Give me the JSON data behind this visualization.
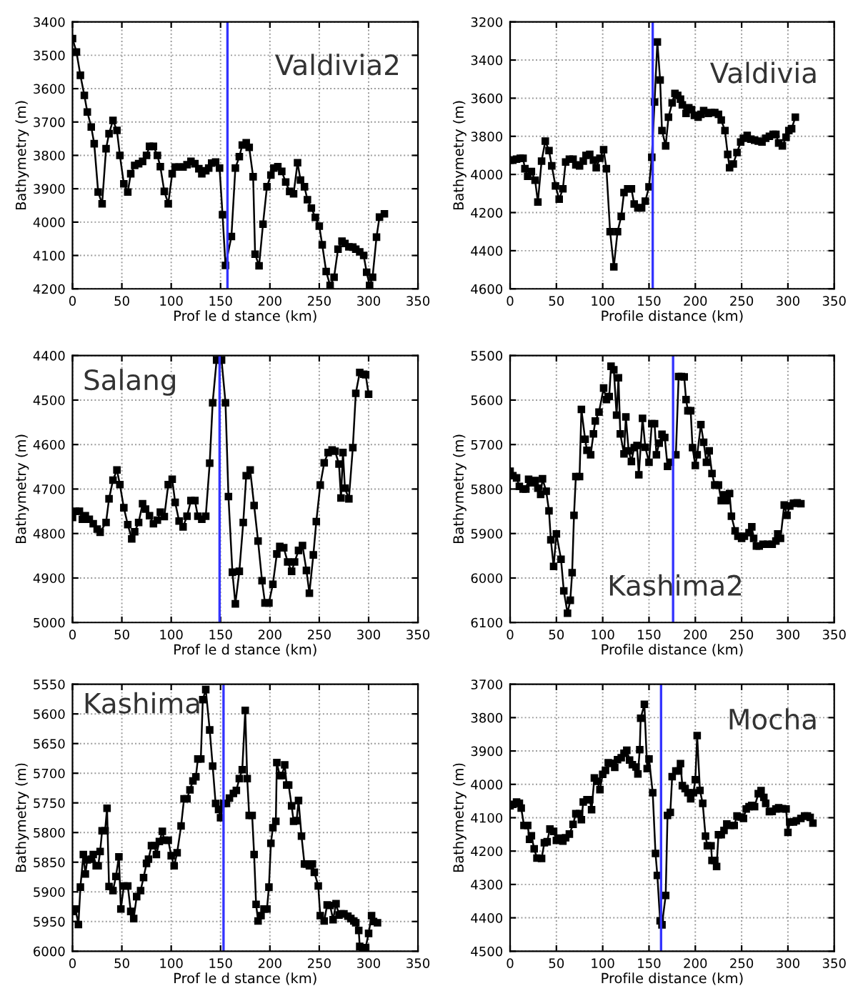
{
  "chart_data": [
    {
      "type": "line",
      "xlabel": "Prof le d stance (km)",
      "ylabel": "Bathymetry (m)",
      "annotations": [
        "Valdivia2"
      ],
      "marker": "square",
      "line_style": "solid",
      "grid": true,
      "xlim": [
        0,
        350
      ],
      "ylim": [
        4200,
        3400
      ],
      "xticks": [
        0,
        50,
        100,
        150,
        200,
        250,
        300,
        350
      ],
      "yticks": [
        3400,
        3500,
        3600,
        3700,
        3800,
        3900,
        4000,
        4100,
        4200
      ],
      "x": [
        0,
        4,
        8,
        12,
        15,
        19,
        22,
        26,
        30,
        34,
        37,
        41,
        45,
        48,
        52,
        56,
        59,
        63,
        67,
        71,
        75,
        78,
        82,
        86,
        89,
        93,
        97,
        101,
        104,
        108,
        112,
        116,
        120,
        124,
        128,
        131,
        135,
        138,
        141,
        145,
        149,
        152,
        155,
        161,
        165,
        169,
        172,
        176,
        179,
        183,
        185,
        189,
        193,
        197,
        201,
        204,
        208,
        212,
        216,
        220,
        224,
        228,
        231,
        235,
        238,
        242,
        246,
        250,
        253,
        257,
        261,
        265,
        269,
        273,
        276,
        280,
        284,
        287,
        291,
        295,
        298,
        301,
        304,
        308,
        311,
        316
      ],
      "series": [
        {
          "color": "#000000",
          "values": [
            3450,
            3490,
            3560,
            3620,
            3670,
            3715,
            3765,
            3910,
            3945,
            3780,
            3735,
            3695,
            3725,
            3800,
            3885,
            3910,
            3855,
            3830,
            3825,
            3818,
            3800,
            3773,
            3773,
            3800,
            3834,
            3908,
            3945,
            3855,
            3835,
            3835,
            3835,
            3828,
            3818,
            3825,
            3840,
            3855,
            3846,
            3838,
            3823,
            3820,
            3838,
            3978,
            4130,
            4043,
            3838,
            3804,
            3769,
            3762,
            3776,
            3864,
            4096,
            4131,
            4006,
            3894,
            3859,
            3838,
            3834,
            3848,
            3880,
            3908,
            3915,
            3822,
            3874,
            3894,
            3933,
            3958,
            3986,
            4012,
            4068,
            4148,
            4190,
            4165,
            4081,
            4057,
            4064,
            4074,
            4075,
            4081,
            4089,
            4100,
            4150,
            4190,
            4165,
            4045,
            3985,
            3975
          ]
        }
      ],
      "ref_lines": [
        {
          "axis": "x",
          "value": 157,
          "color": "#3333ff"
        }
      ]
    },
    {
      "type": "line",
      "xlabel": "Profile distance (km)",
      "ylabel": "Bathymetry (m)",
      "annotations": [
        "Valdivia"
      ],
      "marker": "square",
      "line_style": "solid",
      "grid": true,
      "xlim": [
        0,
        350
      ],
      "ylim": [
        4600,
        3200
      ],
      "xticks": [
        0,
        50,
        100,
        150,
        200,
        250,
        300,
        350
      ],
      "yticks": [
        3200,
        3400,
        3600,
        3800,
        4000,
        4200,
        4400,
        4600
      ],
      "x": [
        0,
        3,
        7,
        11,
        14,
        16,
        19,
        23,
        27,
        30,
        34,
        38,
        42,
        45,
        49,
        53,
        57,
        60,
        64,
        68,
        71,
        75,
        79,
        82,
        86,
        90,
        93,
        97,
        101,
        104,
        108,
        112,
        116,
        120,
        123,
        127,
        131,
        134,
        138,
        142,
        146,
        150,
        153,
        156,
        159,
        162,
        164,
        168,
        171,
        175,
        178,
        181,
        184,
        186,
        190,
        193,
        196,
        199,
        203,
        206,
        209,
        214,
        217,
        221,
        225,
        228,
        232,
        235,
        237,
        241,
        245,
        249,
        252,
        256,
        260,
        264,
        268,
        272,
        276,
        280,
        284,
        287,
        290,
        294,
        298,
        301,
        304,
        308
      ],
      "series": [
        {
          "color": "#000000",
          "values": [
            3925,
            3925,
            3920,
            3915,
            3915,
            3970,
            4010,
            3985,
            4030,
            4145,
            3930,
            3825,
            3875,
            3955,
            4060,
            4130,
            4075,
            3935,
            3920,
            3920,
            3950,
            3955,
            3930,
            3900,
            3895,
            3925,
            3965,
            3915,
            3870,
            3970,
            4300,
            4485,
            4300,
            4220,
            4095,
            4075,
            4075,
            4155,
            4175,
            4175,
            4140,
            4065,
            3910,
            3620,
            3305,
            3505,
            3770,
            3850,
            3700,
            3625,
            3575,
            3585,
            3605,
            3635,
            3680,
            3650,
            3660,
            3690,
            3700,
            3685,
            3665,
            3680,
            3675,
            3675,
            3685,
            3715,
            3770,
            3895,
            3965,
            3945,
            3885,
            3830,
            3810,
            3795,
            3815,
            3820,
            3825,
            3830,
            3810,
            3800,
            3790,
            3790,
            3835,
            3850,
            3805,
            3770,
            3760,
            3700
          ]
        }
      ],
      "ref_lines": [
        {
          "axis": "x",
          "value": 154,
          "color": "#3333ff"
        }
      ]
    },
    {
      "type": "line",
      "xlabel": "Prof le d stance (km)",
      "ylabel": "Bathymetry (m)",
      "annotations": [
        "Salang"
      ],
      "marker": "square",
      "line_style": "solid",
      "grid": true,
      "xlim": [
        0,
        350
      ],
      "ylim": [
        5000,
        4400
      ],
      "xticks": [
        0,
        50,
        100,
        150,
        200,
        250,
        300,
        350
      ],
      "yticks": [
        4400,
        4500,
        4600,
        4700,
        4800,
        4900,
        5000
      ],
      "x": [
        0,
        3,
        7,
        10,
        13,
        17,
        21,
        25,
        28,
        34,
        37,
        41,
        45,
        48,
        52,
        56,
        60,
        63,
        67,
        71,
        74,
        78,
        82,
        86,
        89,
        93,
        97,
        101,
        104,
        108,
        112,
        116,
        120,
        124,
        127,
        131,
        135,
        139,
        142,
        146,
        151,
        155,
        158,
        162,
        165,
        169,
        173,
        176,
        180,
        184,
        188,
        192,
        195,
        199,
        203,
        207,
        210,
        214,
        218,
        222,
        225,
        229,
        233,
        237,
        240,
        244,
        247,
        251,
        255,
        259,
        263,
        266,
        270,
        272,
        274,
        276,
        280,
        284,
        287,
        291,
        295,
        297,
        300
      ],
      "series": [
        {
          "color": "#000000",
          "values": [
            4764,
            4750,
            4750,
            4768,
            4760,
            4768,
            4778,
            4790,
            4797,
            4775,
            4722,
            4680,
            4657,
            4690,
            4742,
            4780,
            4812,
            4796,
            4775,
            4733,
            4745,
            4760,
            4778,
            4770,
            4752,
            4762,
            4690,
            4678,
            4730,
            4772,
            4785,
            4761,
            4726,
            4726,
            4761,
            4768,
            4761,
            4642,
            4506,
            4410,
            4410,
            4506,
            4717,
            4887,
            4958,
            4885,
            4775,
            4670,
            4657,
            4737,
            4817,
            4906,
            4956,
            4956,
            4914,
            4846,
            4829,
            4832,
            4864,
            4885,
            4864,
            4838,
            4827,
            4883,
            4934,
            4848,
            4773,
            4691,
            4641,
            4618,
            4612,
            4615,
            4644,
            4720,
            4618,
            4698,
            4722,
            4607,
            4485,
            4438,
            4442,
            4443,
            4487
          ]
        }
      ],
      "ref_lines": [
        {
          "axis": "x",
          "value": 149,
          "color": "#3333ff"
        }
      ]
    },
    {
      "type": "line",
      "xlabel": "Profile distance (km)",
      "ylabel": "Bathymetry (m)",
      "annotations": [
        "Kashima2"
      ],
      "marker": "square",
      "line_style": "solid",
      "grid": true,
      "xlim": [
        0,
        350
      ],
      "ylim": [
        6100,
        5500
      ],
      "xticks": [
        0,
        50,
        100,
        150,
        200,
        250,
        300,
        350
      ],
      "yticks": [
        5500,
        5600,
        5700,
        5800,
        5900,
        6000,
        6100
      ],
      "x": [
        0,
        3,
        7,
        10,
        14,
        17,
        20,
        23,
        27,
        30,
        33,
        35,
        39,
        42,
        44,
        47,
        50,
        55,
        58,
        62,
        65,
        67,
        69,
        71,
        75,
        77,
        81,
        83,
        87,
        90,
        92,
        96,
        101,
        104,
        107,
        109,
        112,
        115,
        117,
        119,
        123,
        125,
        128,
        131,
        134,
        137,
        139,
        143,
        146,
        150,
        153,
        156,
        158,
        161,
        164,
        167,
        170,
        173,
        179,
        182,
        185,
        188,
        190,
        192,
        195,
        197,
        200,
        202,
        206,
        209,
        212,
        215,
        218,
        221,
        225,
        228,
        231,
        233,
        237,
        239,
        243,
        246,
        250,
        253,
        258,
        261,
        263,
        266,
        269,
        273,
        278,
        283,
        287,
        289,
        292,
        296,
        299,
        302,
        306,
        310,
        314
      ],
      "series": [
        {
          "color": "#000000",
          "values": [
            5760,
            5770,
            5775,
            5794,
            5800,
            5800,
            5778,
            5786,
            5781,
            5798,
            5812,
            5777,
            5805,
            5849,
            5914,
            5974,
            5901,
            5958,
            6029,
            6079,
            6050,
            5988,
            5859,
            5772,
            5772,
            5621,
            5688,
            5713,
            5723,
            5676,
            5647,
            5627,
            5573,
            5599,
            5592,
            5524,
            5532,
            5634,
            5550,
            5676,
            5721,
            5638,
            5714,
            5738,
            5707,
            5702,
            5768,
            5641,
            5706,
            5740,
            5653,
            5653,
            5723,
            5697,
            5677,
            5684,
            5749,
            5740,
            5723,
            5547,
            5547,
            5548,
            5599,
            5624,
            5624,
            5707,
            5747,
            5723,
            5655,
            5695,
            5740,
            5714,
            5765,
            5791,
            5791,
            5826,
            5813,
            5826,
            5810,
            5861,
            5894,
            5906,
            5911,
            5906,
            5898,
            5885,
            5911,
            5928,
            5928,
            5924,
            5924,
            5924,
            5917,
            5901,
            5911,
            5836,
            5859,
            5838,
            5832,
            5831,
            5833
          ]
        }
      ],
      "ref_lines": [
        {
          "axis": "x",
          "value": 176,
          "color": "#3333ff"
        }
      ]
    },
    {
      "type": "line",
      "xlabel": "Prof le d stance (km)",
      "ylabel": "Bathymetry (m)",
      "annotations": [
        "Kashima"
      ],
      "marker": "square",
      "line_style": "solid",
      "grid": true,
      "xlim": [
        0,
        350
      ],
      "ylim": [
        6000,
        5550
      ],
      "xticks": [
        0,
        50,
        100,
        150,
        200,
        250,
        300,
        350
      ],
      "yticks": [
        5550,
        5600,
        5650,
        5700,
        5750,
        5800,
        5850,
        5900,
        5950,
        6000
      ],
      "x": [
        0,
        3,
        6,
        8,
        11,
        13,
        15,
        19,
        21,
        24,
        26,
        28,
        30,
        33,
        35,
        37,
        41,
        44,
        47,
        49,
        52,
        56,
        59,
        62,
        65,
        69,
        72,
        75,
        77,
        80,
        83,
        85,
        88,
        91,
        93,
        97,
        100,
        103,
        106,
        110,
        113,
        116,
        119,
        122,
        125,
        127,
        130,
        132,
        135,
        139,
        142,
        145,
        148,
        150,
        153,
        156,
        159,
        163,
        166,
        169,
        172,
        175,
        177,
        179,
        182,
        184,
        186,
        188,
        191,
        194,
        197,
        199,
        201,
        203,
        206,
        207,
        210,
        212,
        215,
        217,
        219,
        222,
        224,
        227,
        229,
        232,
        235,
        237,
        240,
        243,
        245,
        249,
        251,
        255,
        258,
        261,
        264,
        267,
        270,
        272,
        275,
        279,
        282,
        285,
        287,
        290,
        291,
        294,
        297,
        300,
        303,
        305,
        309
      ],
      "series": [
        {
          "color": "#000000",
          "values": [
            5933,
            5929,
            5955,
            5892,
            5837,
            5870,
            5846,
            5845,
            5837,
            5856,
            5856,
            5832,
            5797,
            5797,
            5759,
            5891,
            5898,
            5874,
            5841,
            5929,
            5890,
            5890,
            5933,
            5945,
            5908,
            5898,
            5876,
            5852,
            5845,
            5822,
            5822,
            5837,
            5815,
            5798,
            5813,
            5813,
            5839,
            5856,
            5834,
            5789,
            5743,
            5743,
            5728,
            5713,
            5706,
            5676,
            5676,
            5576,
            5559,
            5627,
            5688,
            5751,
            5761,
            5775,
            5751,
            5751,
            5742,
            5734,
            5729,
            5709,
            5694,
            5594,
            5709,
            5771,
            5771,
            5837,
            5921,
            5949,
            5940,
            5929,
            5929,
            5892,
            5818,
            5792,
            5781,
            5682,
            5704,
            5704,
            5686,
            5720,
            5720,
            5755,
            5781,
            5780,
            5746,
            5806,
            5853,
            5853,
            5856,
            5853,
            5867,
            5890,
            5940,
            5949,
            5922,
            5923,
            5947,
            5920,
            5939,
            5937,
            5937,
            5941,
            5945,
            5949,
            5952,
            5965,
            5992,
            5994,
            5994,
            5970,
            5940,
            5950,
            5952
          ]
        }
      ],
      "ref_lines": [
        {
          "axis": "x",
          "value": 153,
          "color": "#3333ff"
        }
      ]
    },
    {
      "type": "line",
      "xlabel": "Profile distance (km)",
      "ylabel": "Bathymetry (m)",
      "annotations": [
        "Mocha"
      ],
      "marker": "square",
      "line_style": "solid",
      "grid": true,
      "xlim": [
        0,
        350
      ],
      "ylim": [
        4500,
        3700
      ],
      "xticks": [
        0,
        50,
        100,
        150,
        200,
        250,
        300,
        350
      ],
      "yticks": [
        3700,
        3800,
        3900,
        4000,
        4100,
        4200,
        4300,
        4400,
        4500
      ],
      "x": [
        0,
        3,
        7,
        10,
        12,
        15,
        19,
        21,
        23,
        26,
        29,
        34,
        37,
        40,
        43,
        47,
        50,
        53,
        57,
        60,
        64,
        68,
        71,
        75,
        77,
        79,
        83,
        86,
        88,
        91,
        94,
        97,
        100,
        103,
        106,
        110,
        113,
        116,
        120,
        123,
        126,
        129,
        132,
        136,
        138,
        140,
        141,
        145,
        148,
        150,
        154,
        157,
        159,
        162,
        164,
        168,
        170,
        173,
        175,
        179,
        182,
        184,
        186,
        189,
        192,
        195,
        198,
        200,
        202,
        205,
        208,
        211,
        213,
        217,
        218,
        221,
        223,
        225,
        228,
        231,
        234,
        238,
        242,
        245,
        249,
        252,
        255,
        258,
        261,
        264,
        268,
        271,
        274,
        276,
        280,
        283,
        287,
        290,
        294,
        298,
        300,
        302,
        306,
        309,
        314,
        318,
        321,
        324,
        327
      ],
      "series": [
        {
          "color": "#000000",
          "values": [
            4064,
            4060,
            4053,
            4057,
            4071,
            4123,
            4123,
            4165,
            4154,
            4193,
            4221,
            4222,
            4175,
            4172,
            4134,
            4141,
            4168,
            4161,
            4170,
            4160,
            4149,
            4120,
            4088,
            4088,
            4106,
            4053,
            4046,
            4046,
            4076,
            3981,
            3991,
            4016,
            3970,
            3958,
            3935,
            3937,
            3949,
            3926,
            3920,
            3907,
            3898,
            3927,
            3941,
            3948,
            3969,
            3896,
            3802,
            3760,
            3953,
            3924,
            4025,
            4207,
            4273,
            4409,
            4421,
            4333,
            4093,
            4084,
            3977,
            3960,
            3960,
            3938,
            4004,
            4013,
            4025,
            4043,
            4025,
            3986,
            3854,
            4018,
            4057,
            4155,
            4184,
            4184,
            4228,
            4228,
            4246,
            4151,
            4151,
            4138,
            4119,
            4123,
            4123,
            4095,
            4098,
            4102,
            4074,
            4067,
            4063,
            4067,
            4028,
            4019,
            4039,
            4057,
            4082,
            4081,
            4074,
            4070,
            4073,
            4074,
            4144,
            4113,
            4113,
            4109,
            4102,
            4095,
            4095,
            4099,
            4116
          ]
        }
      ],
      "ref_lines": [
        {
          "axis": "x",
          "value": 163,
          "color": "#3333ff"
        }
      ]
    }
  ]
}
